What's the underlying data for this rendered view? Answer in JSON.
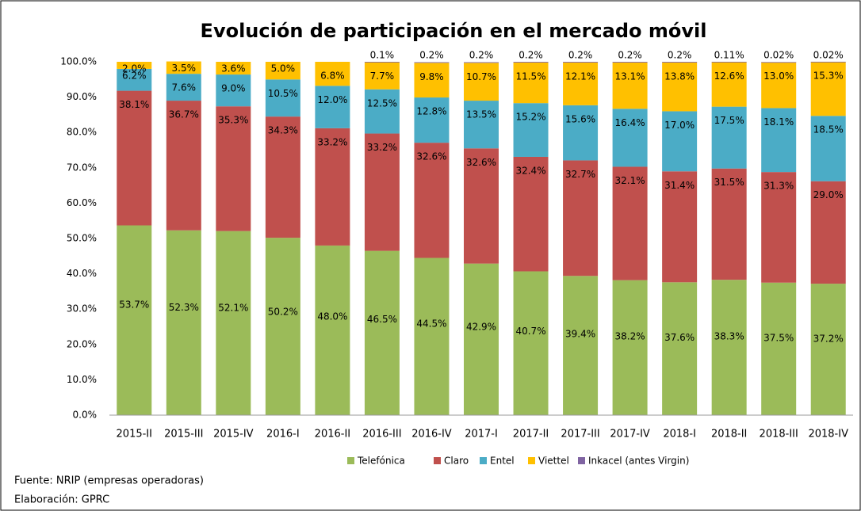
{
  "chart_data": {
    "type": "stacked_bar",
    "title": "Evolución de participación en el mercado móvil",
    "categories": [
      "2015-II",
      "2015-III",
      "2015-IV",
      "2016-I",
      "2016-II",
      "2016-III",
      "2016-IV",
      "2017-I",
      "2017-II",
      "2017-III",
      "2017-IV",
      "2018-I",
      "2018-II",
      "2018-III",
      "2018-IV"
    ],
    "series": [
      {
        "name": "Telefónica",
        "color": "#9bbb59",
        "values": [
          53.7,
          52.3,
          52.1,
          50.2,
          48.0,
          46.5,
          44.5,
          42.9,
          40.7,
          39.4,
          38.2,
          37.6,
          38.3,
          37.5,
          37.2
        ],
        "value_labels": [
          "53.7%",
          "52.3%",
          "52.1%",
          "50.2%",
          "48.0%",
          "46.5%",
          "44.5%",
          "42.9%",
          "40.7%",
          "39.4%",
          "38.2%",
          "37.6%",
          "38.3%",
          "37.5%",
          "37.2%"
        ]
      },
      {
        "name": "Claro",
        "color": "#c0504d",
        "values": [
          38.1,
          36.7,
          35.3,
          34.3,
          33.2,
          33.2,
          32.6,
          32.6,
          32.4,
          32.7,
          32.1,
          31.4,
          31.5,
          31.3,
          29.0
        ],
        "value_labels": [
          "38.1%",
          "36.7%",
          "35.3%",
          "34.3%",
          "33.2%",
          "33.2%",
          "32.6%",
          "32.6%",
          "32.4%",
          "32.7%",
          "32.1%",
          "31.4%",
          "31.5%",
          "31.3%",
          "29.0%"
        ]
      },
      {
        "name": "Entel",
        "color": "#4bacc6",
        "values": [
          6.2,
          7.6,
          9.0,
          10.5,
          12.0,
          12.5,
          12.8,
          13.5,
          15.2,
          15.6,
          16.4,
          17.0,
          17.5,
          18.1,
          18.5
        ],
        "value_labels": [
          "6.2%",
          "7.6%",
          "9.0%",
          "10.5%",
          "12.0%",
          "12.5%",
          "12.8%",
          "13.5%",
          "15.2%",
          "15.6%",
          "16.4%",
          "17.0%",
          "17.5%",
          "18.1%",
          "18.5%"
        ]
      },
      {
        "name": "Viettel",
        "color": "#ffc000",
        "values": [
          2.0,
          3.5,
          3.6,
          5.0,
          6.8,
          7.7,
          9.8,
          10.7,
          11.5,
          12.1,
          13.1,
          13.8,
          12.6,
          13.0,
          15.3
        ],
        "value_labels": [
          "2.0%",
          "3.5%",
          "3.6%",
          "5.0%",
          "6.8%",
          "7.7%",
          "9.8%",
          "10.7%",
          "11.5%",
          "12.1%",
          "13.1%",
          "13.8%",
          "12.6%",
          "13.0%",
          "15.3%"
        ]
      },
      {
        "name": "Inkacel (antes Virgin)",
        "color": "#8064a2",
        "values": [
          null,
          null,
          null,
          null,
          null,
          0.1,
          0.2,
          0.2,
          0.2,
          0.2,
          0.2,
          0.2,
          0.11,
          0.02,
          0.02
        ],
        "value_labels": [
          null,
          null,
          null,
          null,
          null,
          "0.1%",
          "0.2%",
          "0.2%",
          "0.2%",
          "0.2%",
          "0.2%",
          "0.2%",
          "0.11%",
          "0.02%",
          "0.02%"
        ]
      }
    ],
    "ylim": [
      0,
      100
    ],
    "yticks": [
      {
        "value": 0,
        "label": "0.0%"
      },
      {
        "value": 10,
        "label": "10.0%"
      },
      {
        "value": 20,
        "label": "20.0%"
      },
      {
        "value": 30,
        "label": "30.0%"
      },
      {
        "value": 40,
        "label": "40.0%"
      },
      {
        "value": 50,
        "label": "50.0%"
      },
      {
        "value": 60,
        "label": "60.0%"
      },
      {
        "value": 70,
        "label": "70.0%"
      },
      {
        "value": 80,
        "label": "80.0%"
      },
      {
        "value": 90,
        "label": "90.0%"
      },
      {
        "value": 100,
        "label": "100.0%"
      }
    ],
    "grid": false,
    "legend": "bottom"
  },
  "source": "Fuente: NRIP (empresas operadoras)",
  "credit": "Elaboración: GPRC"
}
